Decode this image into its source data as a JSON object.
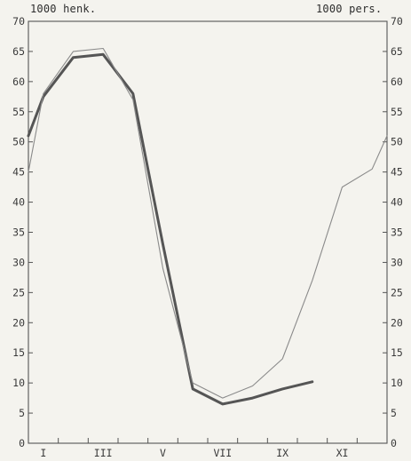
{
  "chart_data": {
    "type": "line",
    "left_axis_unit": "1000 henk.",
    "right_axis_unit": "1000 pers.",
    "y_range": [
      0,
      70
    ],
    "y_ticks": [
      0,
      5,
      10,
      15,
      20,
      25,
      30,
      35,
      40,
      45,
      50,
      55,
      60,
      65,
      70
    ],
    "x_range": [
      0.5,
      12.5
    ],
    "x_ticks": [
      {
        "label": "I",
        "x": 1
      },
      {
        "label": "III",
        "x": 3
      },
      {
        "label": "V",
        "x": 5
      },
      {
        "label": "VII",
        "x": 7
      },
      {
        "label": "IX",
        "x": 9
      },
      {
        "label": "XI",
        "x": 11
      }
    ],
    "grid": false,
    "legend": "none",
    "series": [
      {
        "style": "thick",
        "color": "#555555",
        "points": [
          [
            0.5,
            51
          ],
          [
            1.0,
            57.5
          ],
          [
            2.0,
            64
          ],
          [
            3.0,
            64.5
          ],
          [
            4.0,
            58
          ],
          [
            5.0,
            33
          ],
          [
            6.0,
            9
          ],
          [
            7.0,
            6.5
          ],
          [
            8.0,
            7.5
          ],
          [
            9.0,
            9
          ],
          [
            10.0,
            10.2
          ]
        ]
      },
      {
        "style": "thin",
        "color": "#8a8a8a",
        "points": [
          [
            0.5,
            45
          ],
          [
            1.0,
            58
          ],
          [
            2.0,
            65
          ],
          [
            3.0,
            65.5
          ],
          [
            4.0,
            57
          ],
          [
            5.0,
            29
          ],
          [
            6.0,
            10
          ],
          [
            7.0,
            7.5
          ],
          [
            8.0,
            9.5
          ],
          [
            9.0,
            14
          ],
          [
            10.0,
            27
          ],
          [
            11.0,
            42.5
          ],
          [
            12.0,
            45.5
          ],
          [
            12.5,
            51
          ]
        ]
      }
    ]
  }
}
